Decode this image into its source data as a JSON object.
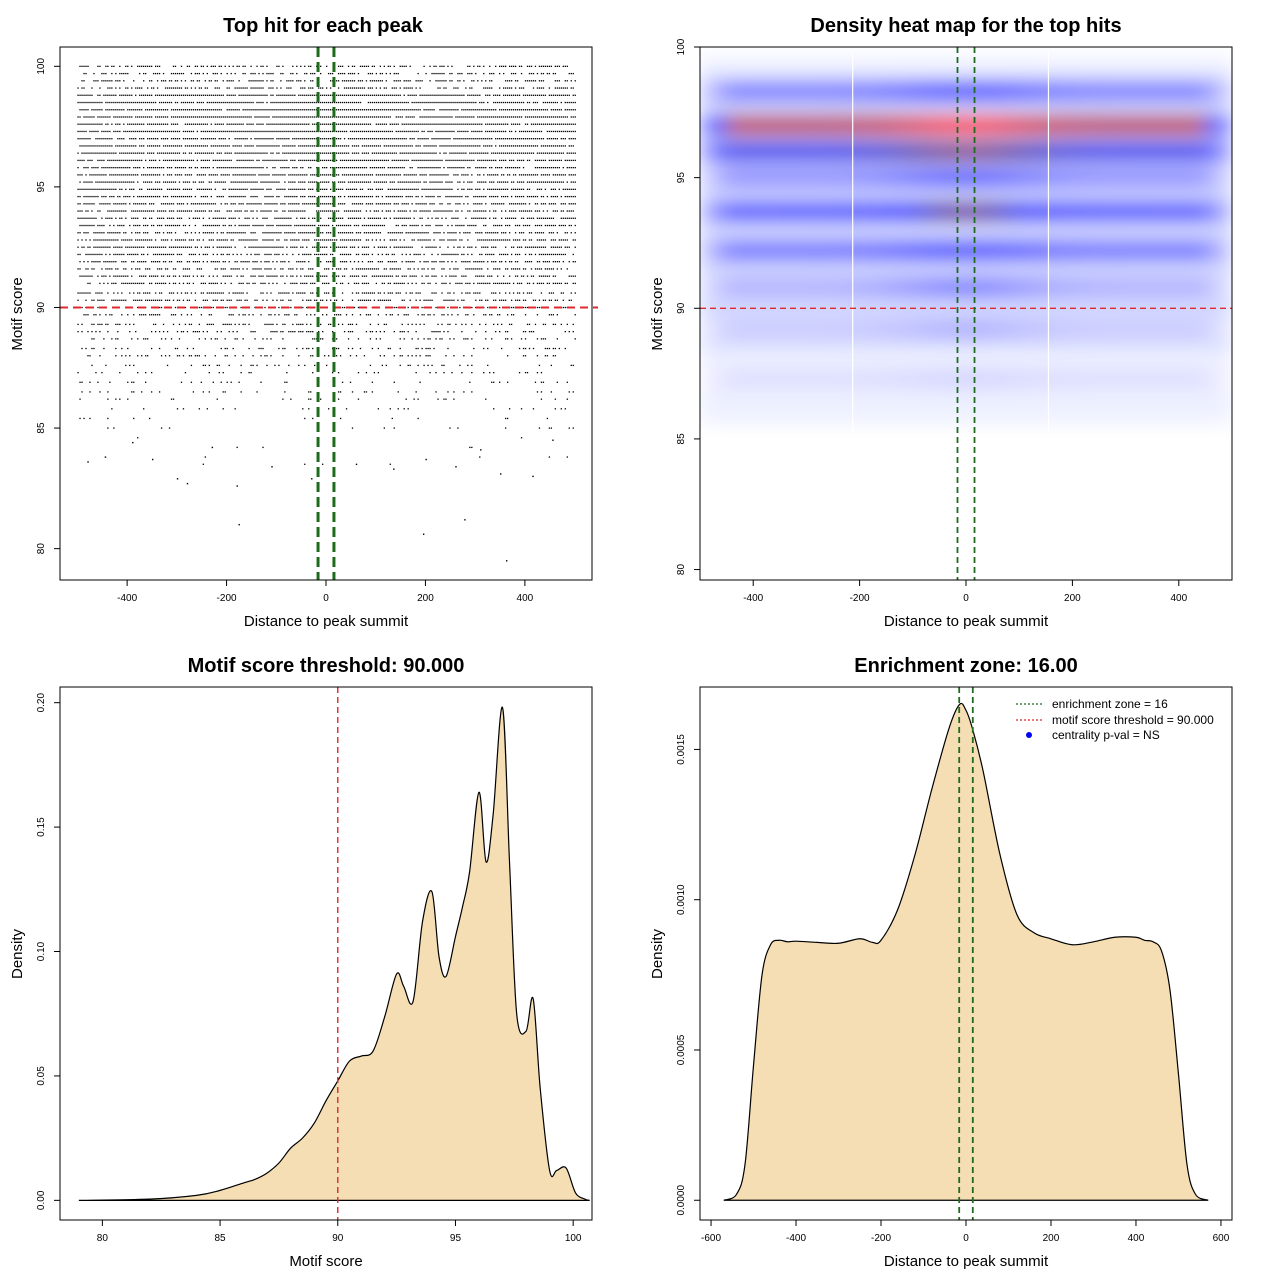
{
  "colors": {
    "density_fill": "#F5DEB3",
    "threshold_line": "#E0282E",
    "zone_line": "#1E6B1E",
    "heat_low": "#ffffff",
    "heat_mid": "#0000ff",
    "heat_high": "#ff0000",
    "legend_dot": "#0000ff"
  },
  "chart_data": [
    {
      "id": "scatter",
      "type": "scatter",
      "title": "Top hit for each peak",
      "xlabel": "Distance to peak summit",
      "ylabel": "Motif score",
      "xlim": [
        -535,
        535
      ],
      "ylim": [
        78.7,
        100.8
      ],
      "xticks": [
        -400,
        -200,
        0,
        200,
        400
      ],
      "yticks": [
        80,
        85,
        90,
        95,
        100
      ],
      "xtick_labels": [
        "-400",
        "-200",
        "0",
        "200",
        "400"
      ],
      "ytick_labels": [
        "80",
        "85",
        "90",
        "95",
        "100"
      ],
      "threshold_y": 90,
      "zone_x": [
        -16,
        16
      ],
      "point_x_range": [
        -500,
        500
      ],
      "point_score_levels": [
        83.5,
        83.8,
        84.2,
        84.6,
        85.0,
        85.4,
        85.8,
        86.2,
        86.5,
        86.9,
        87.3,
        87.6,
        88.0,
        88.3,
        88.7,
        89.0,
        89.3,
        89.7,
        90.0,
        90.3,
        90.6,
        91.0,
        91.3,
        91.6,
        91.9,
        92.2,
        92.5,
        92.8,
        93.1,
        93.4,
        93.7,
        94.0,
        94.3,
        94.6,
        94.9,
        95.2,
        95.5,
        95.8,
        96.1,
        96.4,
        96.7,
        97.0,
        97.3,
        97.6,
        97.9,
        98.2,
        98.5,
        98.8,
        99.1,
        99.4,
        99.7,
        100.0
      ],
      "sparse_points": [
        {
          "x": -480,
          "y": 83.6
        },
        {
          "x": -445,
          "y": 83.8
        },
        {
          "x": -350,
          "y": 83.7
        },
        {
          "x": -300,
          "y": 82.9
        },
        {
          "x": -280,
          "y": 82.7
        },
        {
          "x": -180,
          "y": 82.6
        },
        {
          "x": -110,
          "y": 83.4
        },
        {
          "x": -30,
          "y": 82.9
        },
        {
          "x": 60,
          "y": 83.5
        },
        {
          "x": 135,
          "y": 83.3
        },
        {
          "x": 200,
          "y": 83.7
        },
        {
          "x": 260,
          "y": 83.4
        },
        {
          "x": 350,
          "y": 83.1
        },
        {
          "x": 415,
          "y": 83.0
        },
        {
          "x": -176,
          "y": 81.0
        },
        {
          "x": 195,
          "y": 80.6
        },
        {
          "x": 278,
          "y": 81.2
        },
        {
          "x": 362,
          "y": 79.5
        },
        {
          "x": -390,
          "y": 84.4
        },
        {
          "x": -230,
          "y": 84.2
        },
        {
          "x": 310,
          "y": 84.1
        },
        {
          "x": 455,
          "y": 84.5
        }
      ]
    },
    {
      "id": "heatmap",
      "type": "heatmap",
      "title": "Density heat map for the top hits",
      "xlabel": "Distance to peak summit",
      "ylabel": "Motif score",
      "xlim": [
        -500,
        500
      ],
      "ylim": [
        79.6,
        100.0
      ],
      "xticks": [
        -400,
        -200,
        0,
        200,
        400
      ],
      "yticks": [
        80,
        85,
        90,
        95,
        100
      ],
      "xtick_labels": [
        "-400",
        "-200",
        "0",
        "200",
        "400"
      ],
      "ytick_labels": [
        "80",
        "85",
        "90",
        "95",
        "100"
      ],
      "threshold_y": 90,
      "zone_x": [
        -16,
        16
      ],
      "bands": [
        {
          "y": 97.0,
          "base": 0.92,
          "center": 1.0
        },
        {
          "y": 96.0,
          "base": 0.72,
          "center": 0.85
        },
        {
          "y": 98.3,
          "base": 0.38,
          "center": 0.55
        },
        {
          "y": 93.7,
          "base": 0.55,
          "center": 0.82
        },
        {
          "y": 95.0,
          "base": 0.32,
          "center": 0.5
        },
        {
          "y": 92.2,
          "base": 0.42,
          "center": 0.6
        },
        {
          "y": 90.8,
          "base": 0.22,
          "center": 0.38
        },
        {
          "y": 89.2,
          "base": 0.14,
          "center": 0.22
        },
        {
          "y": 87.3,
          "base": 0.09,
          "center": 0.12
        }
      ]
    },
    {
      "id": "score_density",
      "type": "area",
      "title": "Motif score threshold: 90.000",
      "xlabel": "Motif score",
      "ylabel": "Density",
      "xlim": [
        78.2,
        100.8
      ],
      "ylim": [
        -0.0079,
        0.2063
      ],
      "xticks": [
        80,
        85,
        90,
        95,
        100
      ],
      "yticks": [
        0.0,
        0.05,
        0.1,
        0.15,
        0.2
      ],
      "xtick_labels": [
        "80",
        "85",
        "90",
        "95",
        "100"
      ],
      "ytick_labels": [
        "0.00",
        "0.05",
        "0.10",
        "0.15",
        "0.20"
      ],
      "threshold_x": 90,
      "x": [
        79.0,
        82.0,
        84.0,
        85.0,
        86.0,
        86.5,
        87.0,
        87.5,
        88.0,
        88.5,
        89.0,
        89.5,
        90.0,
        90.5,
        91.0,
        91.5,
        92.0,
        92.5,
        92.8,
        93.2,
        93.6,
        94.0,
        94.3,
        94.6,
        95.0,
        95.3,
        95.6,
        96.0,
        96.3,
        96.6,
        97.0,
        97.3,
        97.6,
        98.0,
        98.3,
        98.6,
        99.0,
        99.3,
        99.7,
        100.1,
        100.5,
        100.7
      ],
      "y": [
        0.0,
        0.0005,
        0.002,
        0.004,
        0.007,
        0.0085,
        0.011,
        0.015,
        0.021,
        0.025,
        0.031,
        0.04,
        0.048,
        0.056,
        0.058,
        0.06,
        0.074,
        0.091,
        0.086,
        0.08,
        0.112,
        0.124,
        0.098,
        0.09,
        0.106,
        0.118,
        0.132,
        0.164,
        0.136,
        0.155,
        0.198,
        0.135,
        0.075,
        0.068,
        0.081,
        0.045,
        0.012,
        0.012,
        0.013,
        0.003,
        0.0005,
        0.0
      ]
    },
    {
      "id": "distance_density",
      "type": "area",
      "title": "Enrichment zone: 16.00",
      "xlabel": "Distance to peak summit",
      "ylabel": "Density",
      "xlim": [
        -626,
        626
      ],
      "ylim": [
        -6.57e-05,
        0.0017077
      ],
      "xticks": [
        -600,
        -400,
        -200,
        0,
        200,
        400,
        600
      ],
      "yticks": [
        0.0,
        0.0005,
        0.001,
        0.0015
      ],
      "xtick_labels": [
        "-600",
        "-400",
        "-200",
        "0",
        "200",
        "400",
        "600"
      ],
      "ytick_labels": [
        "0.0000",
        "0.0005",
        "0.0010",
        "0.0015"
      ],
      "zone_x": [
        -16,
        16
      ],
      "x": [
        -570,
        -540,
        -520,
        -500,
        -480,
        -460,
        -440,
        -420,
        -400,
        -350,
        -300,
        -250,
        -220,
        -200,
        -160,
        -120,
        -80,
        -40,
        -15,
        0,
        15,
        40,
        80,
        120,
        160,
        200,
        250,
        300,
        350,
        400,
        420,
        440,
        460,
        480,
        500,
        520,
        540,
        570
      ],
      "y": [
        0.0,
        2e-05,
        0.00012,
        0.00045,
        0.00075,
        0.00085,
        0.000865,
        0.00086,
        0.000862,
        0.000858,
        0.000855,
        0.00087,
        0.000858,
        0.000865,
        0.00097,
        0.00115,
        0.00137,
        0.00157,
        0.00165,
        0.00163,
        0.00157,
        0.00143,
        0.00115,
        0.00095,
        0.00089,
        0.00087,
        0.00085,
        0.00086,
        0.000875,
        0.000875,
        0.000865,
        0.00086,
        0.00083,
        0.0007,
        0.00042,
        0.00012,
        2e-05,
        0.0
      ]
    }
  ],
  "legend": {
    "zone_label": "enrichment zone = 16",
    "threshold_label": "motif score threshold = 90.000",
    "pval_label": "centrality p-val = NS"
  }
}
